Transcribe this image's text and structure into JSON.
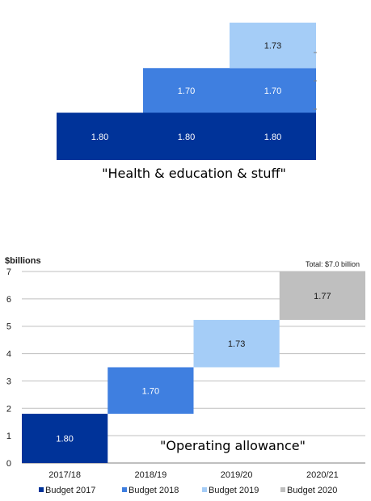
{
  "colors": {
    "budget2017": "#003399",
    "budget2018": "#3f7fe0",
    "budget2019": "#a5cdf7",
    "budget2020": "#bfbfbf",
    "grid": "#bfbfbf",
    "axis": "#7f7f7f"
  },
  "top_panel": {
    "caption": "\"Health & education & stuff\"",
    "chart_data": {
      "type": "bar",
      "stacked": true,
      "columns": 3,
      "segments": [
        {
          "column": 0,
          "layer": 0,
          "value": 1.8,
          "label": "1.80",
          "series": "budget2017"
        },
        {
          "column": 1,
          "layer": 0,
          "value": 1.8,
          "label": "1.80",
          "series": "budget2017"
        },
        {
          "column": 2,
          "layer": 0,
          "value": 1.8,
          "label": "1.80",
          "series": "budget2017"
        },
        {
          "column": 1,
          "layer": 1,
          "value": 1.7,
          "label": "1.70",
          "series": "budget2018"
        },
        {
          "column": 2,
          "layer": 1,
          "value": 1.7,
          "label": "1.70",
          "series": "budget2018"
        },
        {
          "column": 2,
          "layer": 2,
          "value": 1.73,
          "label": "1.73",
          "series": "budget2019"
        }
      ]
    }
  },
  "bottom_panel": {
    "caption": "\"Operating allowance\"",
    "chart_data": {
      "type": "bar",
      "subtype": "waterfall",
      "ylabel": "$billions",
      "ylim": [
        0,
        7
      ],
      "yticks": [
        0,
        1,
        2,
        3,
        4,
        5,
        6,
        7
      ],
      "grid": true,
      "total_label": "Total: $7.0 billion",
      "categories": [
        "2017/18",
        "2018/19",
        "2019/20",
        "2020/21"
      ],
      "bars": [
        {
          "category": "2017/18",
          "base": 0.0,
          "value": 1.8,
          "label": "1.80",
          "series": "budget2017"
        },
        {
          "category": "2018/19",
          "base": 1.8,
          "value": 1.7,
          "label": "1.70",
          "series": "budget2018"
        },
        {
          "category": "2019/20",
          "base": 3.5,
          "value": 1.73,
          "label": "1.73",
          "series": "budget2019"
        },
        {
          "category": "2020/21",
          "base": 5.23,
          "value": 1.77,
          "label": "1.77",
          "series": "budget2020"
        }
      ],
      "legend_position": "bottom",
      "legend": [
        {
          "name": "Budget 2017",
          "series": "budget2017"
        },
        {
          "name": "Budget 2018",
          "series": "budget2018"
        },
        {
          "name": "Budget 2019",
          "series": "budget2019"
        },
        {
          "name": "Budget 2020",
          "series": "budget2020"
        }
      ]
    }
  }
}
